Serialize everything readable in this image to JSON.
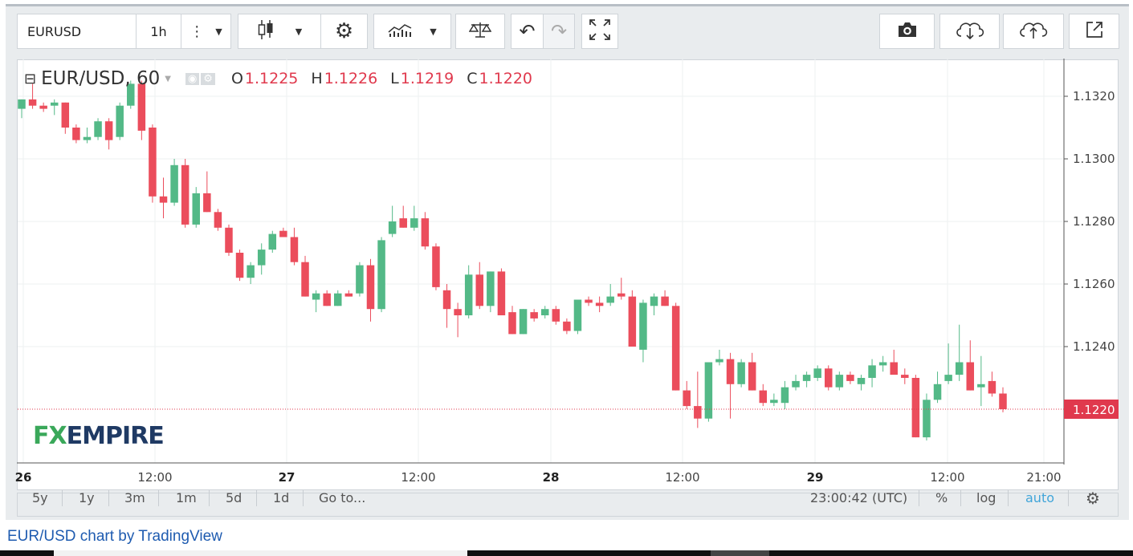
{
  "toolbar": {
    "symbol": "EURUSD",
    "interval": "1h",
    "menu_icon": "vertical-dots-icon",
    "chart_style_icon": "candles-icon",
    "settings_icon": "gear-icon",
    "indicators_icon": "indicators-icon",
    "compare_icon": "scales-icon",
    "undo_icon": "undo-icon",
    "redo_icon": "redo-icon",
    "fullscreen_icon": "fullscreen-icon",
    "snapshot_icon": "camera-icon",
    "load_icon": "cloud-download-icon",
    "save_icon": "cloud-upload-icon",
    "popout_icon": "popout-icon"
  },
  "legend": {
    "title": "EUR/USD, 60",
    "o_label": "O",
    "o_value": "1.1225",
    "h_label": "H",
    "h_value": "1.1226",
    "l_label": "L",
    "l_value": "1.1219",
    "c_label": "C",
    "c_value": "1.1220"
  },
  "logo": {
    "part1": "FX",
    "part2": "EMPIRE"
  },
  "ranges": [
    "5y",
    "1y",
    "3m",
    "1m",
    "5d",
    "1d",
    "Go to..."
  ],
  "status": {
    "time": "23:00:42 (UTC)",
    "percent": "%",
    "log": "log",
    "auto": "auto"
  },
  "credit": "EUR/USD chart by TradingView",
  "colors": {
    "up": "#53b987",
    "down": "#eb4d5c",
    "price_line": "#e0394d",
    "accent": "#41a5d9"
  },
  "chart_data": {
    "type": "candlestick",
    "title": "EUR/USD, 60",
    "ylim": [
      1.1204,
      1.1332
    ],
    "y_ticks": [
      "1.1320",
      "1.1300",
      "1.1280",
      "1.1260",
      "1.1240"
    ],
    "x_ticks": [
      "26",
      "12:00",
      "27",
      "12:00",
      "28",
      "12:00",
      "29",
      "12:00",
      "21:00"
    ],
    "last_price": "1.1220",
    "grid": true,
    "candles": [
      [
        1.1316,
        1.1319,
        1.1313,
        1.1319
      ],
      [
        1.1319,
        1.1324,
        1.1316,
        1.1317
      ],
      [
        1.1317,
        1.1318,
        1.1315,
        1.1316
      ],
      [
        1.1317,
        1.1319,
        1.1314,
        1.1318
      ],
      [
        1.1318,
        1.1318,
        1.1308,
        1.131
      ],
      [
        1.131,
        1.1311,
        1.1305,
        1.1306
      ],
      [
        1.1306,
        1.131,
        1.1305,
        1.1307
      ],
      [
        1.1307,
        1.1313,
        1.1306,
        1.1312
      ],
      [
        1.1312,
        1.1313,
        1.1303,
        1.1306
      ],
      [
        1.1307,
        1.1318,
        1.1306,
        1.1317
      ],
      [
        1.1317,
        1.1325,
        1.1316,
        1.1324
      ],
      [
        1.1324,
        1.1325,
        1.1306,
        1.1309
      ],
      [
        1.131,
        1.1311,
        1.1286,
        1.1288
      ],
      [
        1.1288,
        1.1294,
        1.1281,
        1.1286
      ],
      [
        1.1286,
        1.13,
        1.1285,
        1.1298
      ],
      [
        1.1298,
        1.13,
        1.1278,
        1.1279
      ],
      [
        1.1279,
        1.1291,
        1.1278,
        1.1289
      ],
      [
        1.1289,
        1.1296,
        1.1283,
        1.1283
      ],
      [
        1.1283,
        1.1284,
        1.1277,
        1.1278
      ],
      [
        1.1278,
        1.1279,
        1.1269,
        1.127
      ],
      [
        1.127,
        1.1271,
        1.1261,
        1.1262
      ],
      [
        1.1262,
        1.1267,
        1.126,
        1.1266
      ],
      [
        1.1266,
        1.1273,
        1.1263,
        1.1271
      ],
      [
        1.1271,
        1.1277,
        1.127,
        1.1276
      ],
      [
        1.1277,
        1.1278,
        1.1275,
        1.1275
      ],
      [
        1.1275,
        1.1278,
        1.1266,
        1.1267
      ],
      [
        1.1267,
        1.1269,
        1.1256,
        1.1256
      ],
      [
        1.1255,
        1.1258,
        1.1251,
        1.1257
      ],
      [
        1.1257,
        1.1258,
        1.1253,
        1.1253
      ],
      [
        1.1253,
        1.1258,
        1.1253,
        1.1257
      ],
      [
        1.1257,
        1.1258,
        1.1256,
        1.1256
      ],
      [
        1.1257,
        1.1267,
        1.1256,
        1.1266
      ],
      [
        1.1266,
        1.1268,
        1.1248,
        1.1252
      ],
      [
        1.1252,
        1.1275,
        1.1251,
        1.1274
      ],
      [
        1.1276,
        1.1285,
        1.1275,
        1.128
      ],
      [
        1.1281,
        1.1285,
        1.1278,
        1.1278
      ],
      [
        1.1278,
        1.1285,
        1.1277,
        1.1281
      ],
      [
        1.1281,
        1.1283,
        1.1271,
        1.1272
      ],
      [
        1.1272,
        1.1273,
        1.1258,
        1.1259
      ],
      [
        1.1258,
        1.126,
        1.1246,
        1.1252
      ],
      [
        1.1252,
        1.1254,
        1.1243,
        1.125
      ],
      [
        1.125,
        1.1266,
        1.1249,
        1.1263
      ],
      [
        1.1263,
        1.1267,
        1.1252,
        1.1253
      ],
      [
        1.1253,
        1.1264,
        1.1251,
        1.1264
      ],
      [
        1.1264,
        1.1265,
        1.125,
        1.125
      ],
      [
        1.1251,
        1.1253,
        1.1244,
        1.1244
      ],
      [
        1.1244,
        1.1252,
        1.1244,
        1.1252
      ],
      [
        1.1251,
        1.1252,
        1.1248,
        1.1249
      ],
      [
        1.125,
        1.1253,
        1.1249,
        1.1252
      ],
      [
        1.1252,
        1.1253,
        1.1247,
        1.1248
      ],
      [
        1.1248,
        1.1249,
        1.1244,
        1.1245
      ],
      [
        1.1245,
        1.1255,
        1.1244,
        1.1255
      ],
      [
        1.1255,
        1.1256,
        1.1253,
        1.1254
      ],
      [
        1.1254,
        1.1256,
        1.1251,
        1.1253
      ],
      [
        1.1254,
        1.126,
        1.1253,
        1.1256
      ],
      [
        1.1257,
        1.1262,
        1.1255,
        1.1256
      ],
      [
        1.1256,
        1.1258,
        1.124,
        1.124
      ],
      [
        1.1239,
        1.1255,
        1.1235,
        1.1254
      ],
      [
        1.1253,
        1.1257,
        1.125,
        1.1256
      ],
      [
        1.1256,
        1.1258,
        1.1253,
        1.1253
      ],
      [
        1.1253,
        1.1254,
        1.1226,
        1.1226
      ],
      [
        1.1226,
        1.1229,
        1.122,
        1.1221
      ],
      [
        1.1221,
        1.1232,
        1.1214,
        1.1217
      ],
      [
        1.1217,
        1.1235,
        1.1216,
        1.1235
      ],
      [
        1.1235,
        1.1239,
        1.1234,
        1.1236
      ],
      [
        1.1236,
        1.1238,
        1.1217,
        1.1228
      ],
      [
        1.1228,
        1.1236,
        1.1227,
        1.1235
      ],
      [
        1.1235,
        1.1238,
        1.1226,
        1.1226
      ],
      [
        1.1226,
        1.1228,
        1.1221,
        1.1222
      ],
      [
        1.1222,
        1.1225,
        1.1221,
        1.1223
      ],
      [
        1.1222,
        1.1229,
        1.122,
        1.1227
      ],
      [
        1.1227,
        1.1231,
        1.1226,
        1.1229
      ],
      [
        1.1229,
        1.1232,
        1.1227,
        1.1231
      ],
      [
        1.123,
        1.1234,
        1.1229,
        1.1233
      ],
      [
        1.1233,
        1.1234,
        1.1226,
        1.1227
      ],
      [
        1.1227,
        1.1232,
        1.1226,
        1.1231
      ],
      [
        1.1231,
        1.1232,
        1.1228,
        1.1229
      ],
      [
        1.1228,
        1.1231,
        1.1226,
        1.123
      ],
      [
        1.123,
        1.1236,
        1.1227,
        1.1234
      ],
      [
        1.1234,
        1.1237,
        1.1232,
        1.1235
      ],
      [
        1.1235,
        1.1239,
        1.1232,
        1.1231
      ],
      [
        1.1231,
        1.1233,
        1.1228,
        1.123
      ],
      [
        1.123,
        1.1231,
        1.1211,
        1.1211
      ],
      [
        1.1211,
        1.1225,
        1.121,
        1.1223
      ],
      [
        1.1223,
        1.1232,
        1.1222,
        1.1228
      ],
      [
        1.1229,
        1.1241,
        1.1228,
        1.1231
      ],
      [
        1.1231,
        1.1247,
        1.1229,
        1.1235
      ],
      [
        1.1235,
        1.1242,
        1.1226,
        1.1226
      ],
      [
        1.1227,
        1.1237,
        1.1221,
        1.1228
      ],
      [
        1.1229,
        1.1232,
        1.1224,
        1.1225
      ],
      [
        1.1225,
        1.1227,
        1.1219,
        1.122
      ]
    ]
  }
}
